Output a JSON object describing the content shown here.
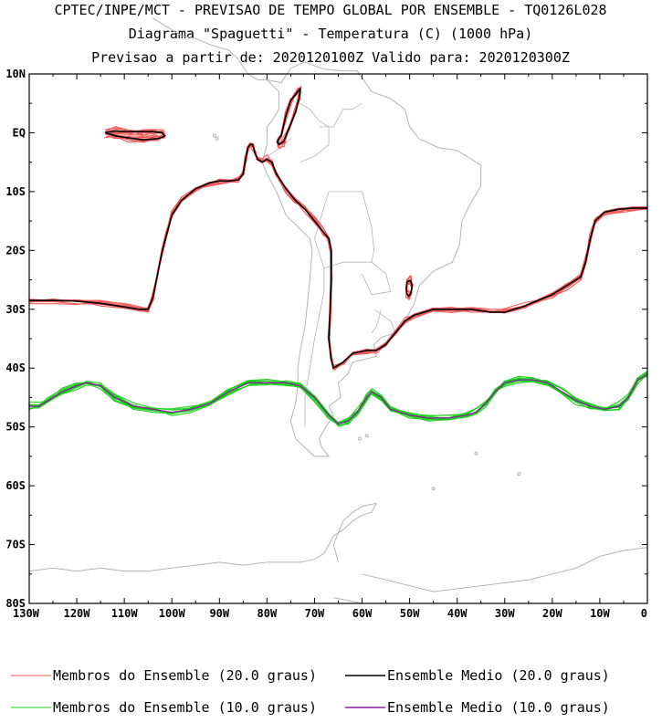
{
  "chart_data": {
    "type": "line",
    "title": "CPTEC/INPE/MCT - PREVISAO DE TEMPO GLOBAL POR ENSEMBLE - TQ0126L028",
    "subtitle": "Diagrama \"Spaguetti\" - Temperatura (C) (1000 hPa)",
    "subtitle2": "Previsao a partir de: 2020120100Z  Valido para: 2020120300Z",
    "xlim": [
      -130,
      0
    ],
    "ylim": [
      -80,
      10
    ],
    "x_ticks": [
      {
        "value": -130,
        "label": "130W"
      },
      {
        "value": -120,
        "label": "120W"
      },
      {
        "value": -110,
        "label": "110W"
      },
      {
        "value": -100,
        "label": "100W"
      },
      {
        "value": -90,
        "label": "90W"
      },
      {
        "value": -80,
        "label": "80W"
      },
      {
        "value": -70,
        "label": "70W"
      },
      {
        "value": -60,
        "label": "60W"
      },
      {
        "value": -50,
        "label": "50W"
      },
      {
        "value": -40,
        "label": "40W"
      },
      {
        "value": -30,
        "label": "30W"
      },
      {
        "value": -20,
        "label": "20W"
      },
      {
        "value": -10,
        "label": "10W"
      },
      {
        "value": 0,
        "label": "0"
      }
    ],
    "y_ticks": [
      {
        "value": 10,
        "label": "10N"
      },
      {
        "value": 0,
        "label": "EQ"
      },
      {
        "value": -10,
        "label": "10S"
      },
      {
        "value": -20,
        "label": "20S"
      },
      {
        "value": -30,
        "label": "30S"
      },
      {
        "value": -40,
        "label": "40S"
      },
      {
        "value": -50,
        "label": "50S"
      },
      {
        "value": -60,
        "label": "60S"
      },
      {
        "value": -70,
        "label": "70S"
      },
      {
        "value": -80,
        "label": "80S"
      }
    ],
    "colors": {
      "member_20": "#f25a5a",
      "mean_20": "#000000",
      "member_10": "#1ed21e",
      "mean_10": "#8c1ea0",
      "coast": "#b4b4b4"
    },
    "ensemble_members": 11,
    "series": [
      {
        "name": "Ensemble Medio (20.0 graus)",
        "role": "mean_20",
        "x": [
          -130,
          -125,
          -120,
          -115,
          -110,
          -107,
          -105,
          -104,
          -103,
          -102,
          -101,
          -100,
          -98,
          -95,
          -92,
          -90,
          -88,
          -86,
          -85,
          -84.5,
          -84,
          -83.5,
          -83,
          -82.5,
          -82,
          -81,
          -80,
          -79,
          -78,
          -76,
          -74,
          -72,
          -70,
          -68,
          -67,
          -66.5,
          -66.5,
          -66.7,
          -67,
          -66.5,
          -66,
          -64,
          -62,
          -59,
          -57,
          -55,
          -53,
          -51,
          -49,
          -45,
          -41,
          -37,
          -33,
          -30,
          -26,
          -23,
          -20,
          -17,
          -14,
          -13,
          -12,
          -11,
          -9,
          -6,
          -3,
          0
        ],
        "y": [
          -28.5,
          -28.5,
          -28.6,
          -29,
          -29.6,
          -30,
          -30,
          -28,
          -24,
          -20,
          -17,
          -14,
          -11.5,
          -9.5,
          -8.5,
          -8.2,
          -8.2,
          -8,
          -7,
          -4.5,
          -2.5,
          -2,
          -2,
          -3.5,
          -4.5,
          -5,
          -4.5,
          -5,
          -7,
          -9.5,
          -11.5,
          -13,
          -15,
          -17,
          -18,
          -20,
          -25,
          -30,
          -35,
          -38.5,
          -40,
          -39,
          -37.5,
          -37,
          -37,
          -36,
          -34,
          -32,
          -31,
          -30,
          -30,
          -30,
          -30.5,
          -30.5,
          -29.5,
          -28.5,
          -27.5,
          -26,
          -24.5,
          -22,
          -18,
          -15,
          -13.5,
          -13,
          -12.8,
          -12.8
        ]
      },
      {
        "name": "Ensemble Medio (20.0 graus)",
        "role": "mean_20",
        "x": [
          -114,
          -112,
          -109,
          -106,
          -104,
          -102,
          -101.5,
          -103,
          -106,
          -109,
          -112,
          -114
        ],
        "y": [
          0,
          0.3,
          0.2,
          0.2,
          0.2,
          0,
          -0.6,
          -1,
          -1.2,
          -0.9,
          -0.5,
          0
        ]
      },
      {
        "name": "Ensemble Medio (20.0 graus)",
        "role": "mean_20",
        "x": [
          -77.5,
          -77,
          -76,
          -75,
          -73.5,
          -73,
          -73.2,
          -74,
          -75.5,
          -76.5,
          -77.5,
          -77.8,
          -77.5
        ],
        "y": [
          -1,
          -0.5,
          3,
          5.5,
          7,
          7.5,
          6,
          3.5,
          0.5,
          -1.5,
          -2,
          -1.5,
          -1
        ]
      },
      {
        "name": "Ensemble Medio (20.0 graus)",
        "role": "mean_20",
        "x": [
          -50.5,
          -49.8,
          -49.5,
          -49.7,
          -50.2,
          -50.6,
          -50.7,
          -50.5
        ],
        "y": [
          -25.3,
          -25.1,
          -26,
          -27.2,
          -27.8,
          -27.3,
          -26.3,
          -25.3
        ]
      },
      {
        "name": "Ensemble Medio (10.0 graus)",
        "role": "mean_10",
        "x": [
          -130,
          -128,
          -126,
          -123,
          -120,
          -118,
          -115,
          -112,
          -108,
          -104,
          -100,
          -96,
          -92,
          -88,
          -84,
          -80,
          -76,
          -73,
          -70,
          -67,
          -65,
          -63,
          -61,
          -59,
          -58,
          -56,
          -54,
          -50,
          -46,
          -42,
          -38,
          -36,
          -34,
          -32,
          -30,
          -27,
          -24,
          -21,
          -18,
          -15,
          -12,
          -9,
          -6,
          -4,
          -2,
          0
        ],
        "y": [
          -46.5,
          -46.5,
          -45.5,
          -44,
          -43,
          -42.5,
          -43,
          -45,
          -46.5,
          -47,
          -47.5,
          -47,
          -46,
          -44,
          -42.5,
          -42.5,
          -42.5,
          -43,
          -45,
          -48,
          -49.5,
          -49,
          -47.5,
          -45,
          -44,
          -45,
          -47,
          -48,
          -48.5,
          -48.5,
          -48,
          -47.5,
          -46,
          -44,
          -42.5,
          -42,
          -42,
          -42.5,
          -44,
          -45.5,
          -46.5,
          -47,
          -46.5,
          -45,
          -42,
          -41
        ]
      },
      {
        "name": "Membros do Ensemble (20.0 graus)",
        "role": "member_20"
      },
      {
        "name": "Membros do Ensemble (10.0 graus)",
        "role": "member_10"
      }
    ],
    "legend": [
      {
        "label": "Membros do Ensemble (20.0 graus)",
        "color": "#f25a5a"
      },
      {
        "label": "Ensemble Medio (20.0 graus)",
        "color": "#000000"
      },
      {
        "label": "Membros do Ensemble (10.0 graus)",
        "color": "#1ed21e"
      },
      {
        "label": "Ensemble Medio (10.0 graus)",
        "color": "#8c1ea0"
      }
    ],
    "legend_position": "bottom",
    "grid": false
  }
}
